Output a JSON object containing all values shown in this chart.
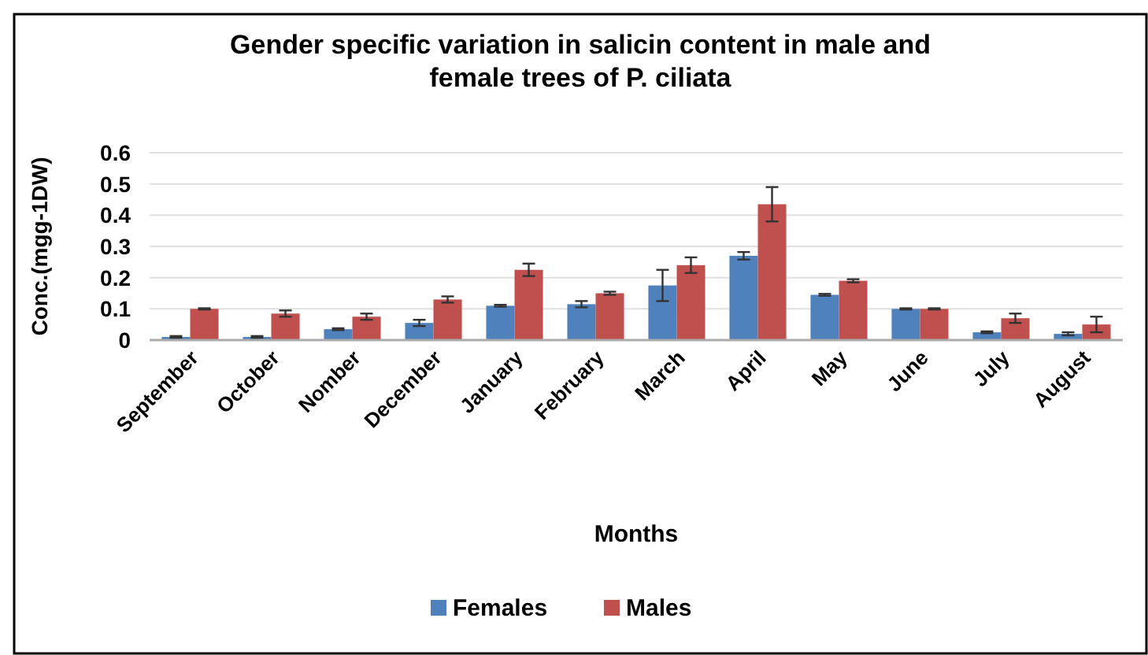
{
  "chart_data": {
    "type": "bar",
    "title": "Gender specific variation in salicin content in male and female trees of P. ciliata",
    "xlabel": "Months",
    "ylabel": "Conc.(mgg-1DW)",
    "categories": [
      "September",
      "October",
      "Nomber",
      "December",
      "January",
      "February",
      "March",
      "April",
      "May",
      "June",
      "July",
      "August"
    ],
    "series": [
      {
        "name": "Females",
        "color": "#4f81bd",
        "values": [
          0.01,
          0.01,
          0.035,
          0.055,
          0.11,
          0.115,
          0.175,
          0.27,
          0.145,
          0.1,
          0.025,
          0.02
        ],
        "errors": [
          0.003,
          0.003,
          0.003,
          0.01,
          0.003,
          0.01,
          0.05,
          0.012,
          0.003,
          0.002,
          0.003,
          0.005
        ]
      },
      {
        "name": "Males",
        "color": "#c0504d",
        "values": [
          0.1,
          0.085,
          0.075,
          0.13,
          0.225,
          0.15,
          0.24,
          0.435,
          0.19,
          0.1,
          0.07,
          0.05
        ],
        "errors": [
          0.002,
          0.01,
          0.01,
          0.01,
          0.02,
          0.005,
          0.025,
          0.055,
          0.005,
          0.002,
          0.015,
          0.025
        ]
      }
    ],
    "ylim": [
      0,
      0.6
    ],
    "yticks": [
      0,
      0.1,
      0.2,
      0.3,
      0.4,
      0.5,
      0.6
    ],
    "grid": "y",
    "legend": "bottom"
  }
}
